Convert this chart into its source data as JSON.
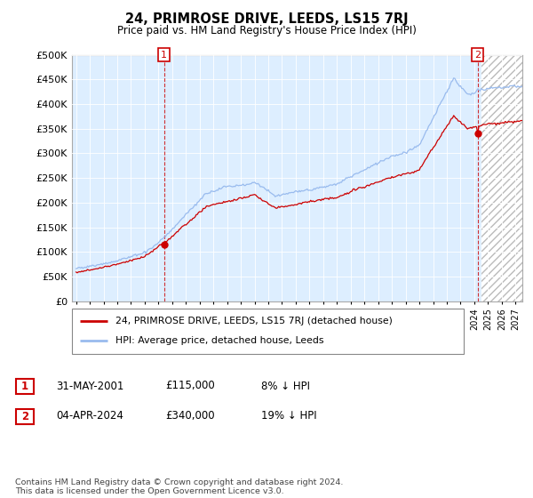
{
  "title": "24, PRIMROSE DRIVE, LEEDS, LS15 7RJ",
  "subtitle": "Price paid vs. HM Land Registry's House Price Index (HPI)",
  "ylim": [
    0,
    500000
  ],
  "yticks": [
    0,
    50000,
    100000,
    150000,
    200000,
    250000,
    300000,
    350000,
    400000,
    450000,
    500000
  ],
  "ytick_labels": [
    "£0",
    "£50K",
    "£100K",
    "£150K",
    "£200K",
    "£250K",
    "£300K",
    "£350K",
    "£400K",
    "£450K",
    "£500K"
  ],
  "legend_line1": "24, PRIMROSE DRIVE, LEEDS, LS15 7RJ (detached house)",
  "legend_line2": "HPI: Average price, detached house, Leeds",
  "legend_line1_color": "#cc0000",
  "legend_line2_color": "#99bbee",
  "ann1_date": "31-MAY-2001",
  "ann1_price": "£115,000",
  "ann1_pct": "8% ↓ HPI",
  "ann1_year": 2001.41,
  "ann1_value": 115000,
  "ann2_date": "04-APR-2024",
  "ann2_price": "£340,000",
  "ann2_pct": "19% ↓ HPI",
  "ann2_year": 2024.25,
  "ann2_value": 340000,
  "footer": "Contains HM Land Registry data © Crown copyright and database right 2024.\nThis data is licensed under the Open Government Licence v3.0.",
  "plot_bg_color": "#ddeeff",
  "grid_color": "#ffffff",
  "background_color": "#ffffff",
  "hatch_color": "#bbbbbb",
  "future_start": 2024.5,
  "xmin": 1994.7,
  "xmax": 2027.5
}
